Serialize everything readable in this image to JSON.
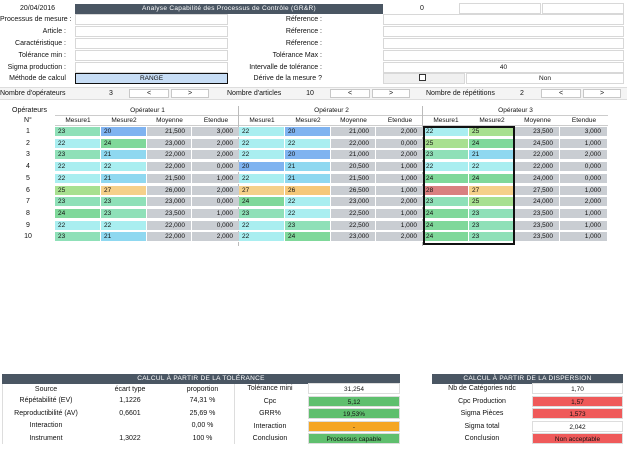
{
  "header": {
    "date": "20/04/2016",
    "title": "Analyse Capabilité des Processus de Contrôle (GR&R)",
    "counter": "0"
  },
  "form_left": [
    {
      "label": "Processus de mesure :",
      "value": ""
    },
    {
      "label": "Article :",
      "value": ""
    },
    {
      "label": "Caractéristique :",
      "value": ""
    },
    {
      "label": "Tolérance min :",
      "value": ""
    },
    {
      "label": "Sigma production :",
      "value": ""
    },
    {
      "label": "Méthode de calcul",
      "value": "RANGE"
    }
  ],
  "form_right": [
    {
      "label": "Réference :",
      "value": ""
    },
    {
      "label": "Réference :",
      "value": ""
    },
    {
      "label": "Réference :",
      "value": ""
    },
    {
      "label": "Tolérance Max :",
      "value": ""
    },
    {
      "label": "Intervalle de tolérance :",
      "value": "40"
    },
    {
      "label": "Dérive de la mesure ?",
      "value": "Non"
    }
  ],
  "counters": {
    "operators": {
      "label": "Nombre d'opérateurs",
      "value": "3",
      "prev": "<",
      "next": ">"
    },
    "articles": {
      "label": "Nombre d'articles",
      "value": "10",
      "prev": "<",
      "next": ">"
    },
    "repetitions": {
      "label": "Nombre de répétitions",
      "value": "2",
      "prev": "<",
      "next": ">"
    }
  },
  "table": {
    "operators_label": "Opérateurs",
    "n_label": "N°",
    "operator_titles": [
      "Opérateur 1",
      "Opérateur 2",
      "Opérateur 3"
    ],
    "col_headers": [
      "Mesure1",
      "Mesure2",
      "Moyenne",
      "Etendue"
    ],
    "rows": [
      {
        "n": "1",
        "ops": [
          [
            "23",
            "20",
            "21,500",
            "3,000"
          ],
          [
            "22",
            "20",
            "21,000",
            "2,000"
          ],
          [
            "22",
            "25",
            "23,500",
            "3,000"
          ]
        ]
      },
      {
        "n": "2",
        "ops": [
          [
            "22",
            "24",
            "23,000",
            "2,000"
          ],
          [
            "22",
            "22",
            "22,000",
            "0,000"
          ],
          [
            "25",
            "24",
            "24,500",
            "1,000"
          ]
        ]
      },
      {
        "n": "3",
        "ops": [
          [
            "23",
            "21",
            "22,000",
            "2,000"
          ],
          [
            "22",
            "20",
            "21,000",
            "2,000"
          ],
          [
            "23",
            "21",
            "22,000",
            "2,000"
          ]
        ]
      },
      {
        "n": "4",
        "ops": [
          [
            "22",
            "22",
            "22,000",
            "0,000"
          ],
          [
            "20",
            "21",
            "20,500",
            "1,000"
          ],
          [
            "22",
            "22",
            "22,000",
            "0,000"
          ]
        ]
      },
      {
        "n": "5",
        "ops": [
          [
            "22",
            "21",
            "21,500",
            "1,000"
          ],
          [
            "22",
            "21",
            "21,500",
            "1,000"
          ],
          [
            "24",
            "24",
            "24,000",
            "0,000"
          ]
        ]
      },
      {
        "n": "6",
        "ops": [
          [
            "25",
            "27",
            "26,000",
            "2,000"
          ],
          [
            "27",
            "26",
            "26,500",
            "1,000"
          ],
          [
            "28",
            "27",
            "27,500",
            "1,000"
          ]
        ]
      },
      {
        "n": "7",
        "ops": [
          [
            "23",
            "23",
            "23,000",
            "0,000"
          ],
          [
            "24",
            "22",
            "23,000",
            "2,000"
          ],
          [
            "23",
            "25",
            "24,000",
            "2,000"
          ]
        ]
      },
      {
        "n": "8",
        "ops": [
          [
            "24",
            "23",
            "23,500",
            "1,000"
          ],
          [
            "23",
            "22",
            "22,500",
            "1,000"
          ],
          [
            "24",
            "23",
            "23,500",
            "1,000"
          ]
        ]
      },
      {
        "n": "9",
        "ops": [
          [
            "22",
            "22",
            "22,000",
            "0,000"
          ],
          [
            "22",
            "23",
            "22,500",
            "1,000"
          ],
          [
            "24",
            "23",
            "23,500",
            "1,000"
          ]
        ]
      },
      {
        "n": "10",
        "ops": [
          [
            "23",
            "21",
            "22,000",
            "2,000"
          ],
          [
            "22",
            "24",
            "23,000",
            "2,000"
          ],
          [
            "24",
            "23",
            "23,500",
            "1,000"
          ]
        ]
      }
    ]
  },
  "tolerance": {
    "title": "CALCUL À PARTIR DE LA TOLÉRANCE",
    "headers": [
      "Source",
      "écart type",
      "proportion"
    ],
    "rows": [
      {
        "source": "Répétabilité (EV)",
        "sd": "1,1226",
        "prop": "74,31 %"
      },
      {
        "source": "Reproductibilité (AV)",
        "sd": "0,6601",
        "prop": "25,69 %"
      },
      {
        "source": "Interaction",
        "sd": "",
        "prop": "0,00 %"
      },
      {
        "source": "Instrument",
        "sd": "1,3022",
        "prop": "100 %"
      }
    ],
    "right": [
      {
        "label": "Tolérance mini",
        "value": "31,254",
        "color": "#ffffff"
      },
      {
        "label": "Cpc",
        "value": "5,12",
        "color": "#5fbf6e"
      },
      {
        "label": "GRR%",
        "value": "19,53%",
        "color": "#5fbf6e"
      },
      {
        "label": "Interaction",
        "value": "-",
        "color": "#f5a623"
      },
      {
        "label": "Conclusion",
        "value": "Processus capable",
        "color": "#5fbf6e"
      }
    ]
  },
  "dispersion": {
    "title": "CALCUL À PARTIR DE LA DISPERSION",
    "rows": [
      {
        "label": "Nb de Catégories ndc",
        "value": "1,70",
        "color": "#ffffff"
      },
      {
        "label": "Cpc Production",
        "value": "1,57",
        "color": "#ef5a5a"
      },
      {
        "label": "Sigma Pièces",
        "value": "1,573",
        "color": "#ef5a5a"
      },
      {
        "label": "Sigma total",
        "value": "2,042",
        "color": "#ffffff"
      },
      {
        "label": "Conclusion",
        "value": "Non acceptable",
        "color": "#ef5a5a"
      }
    ]
  },
  "colors": {
    "band": "#4a5663",
    "gray_cell": "#c9cdd2",
    "green": "#5fbf6e",
    "red": "#ef5a5a",
    "orange": "#f5a623"
  }
}
